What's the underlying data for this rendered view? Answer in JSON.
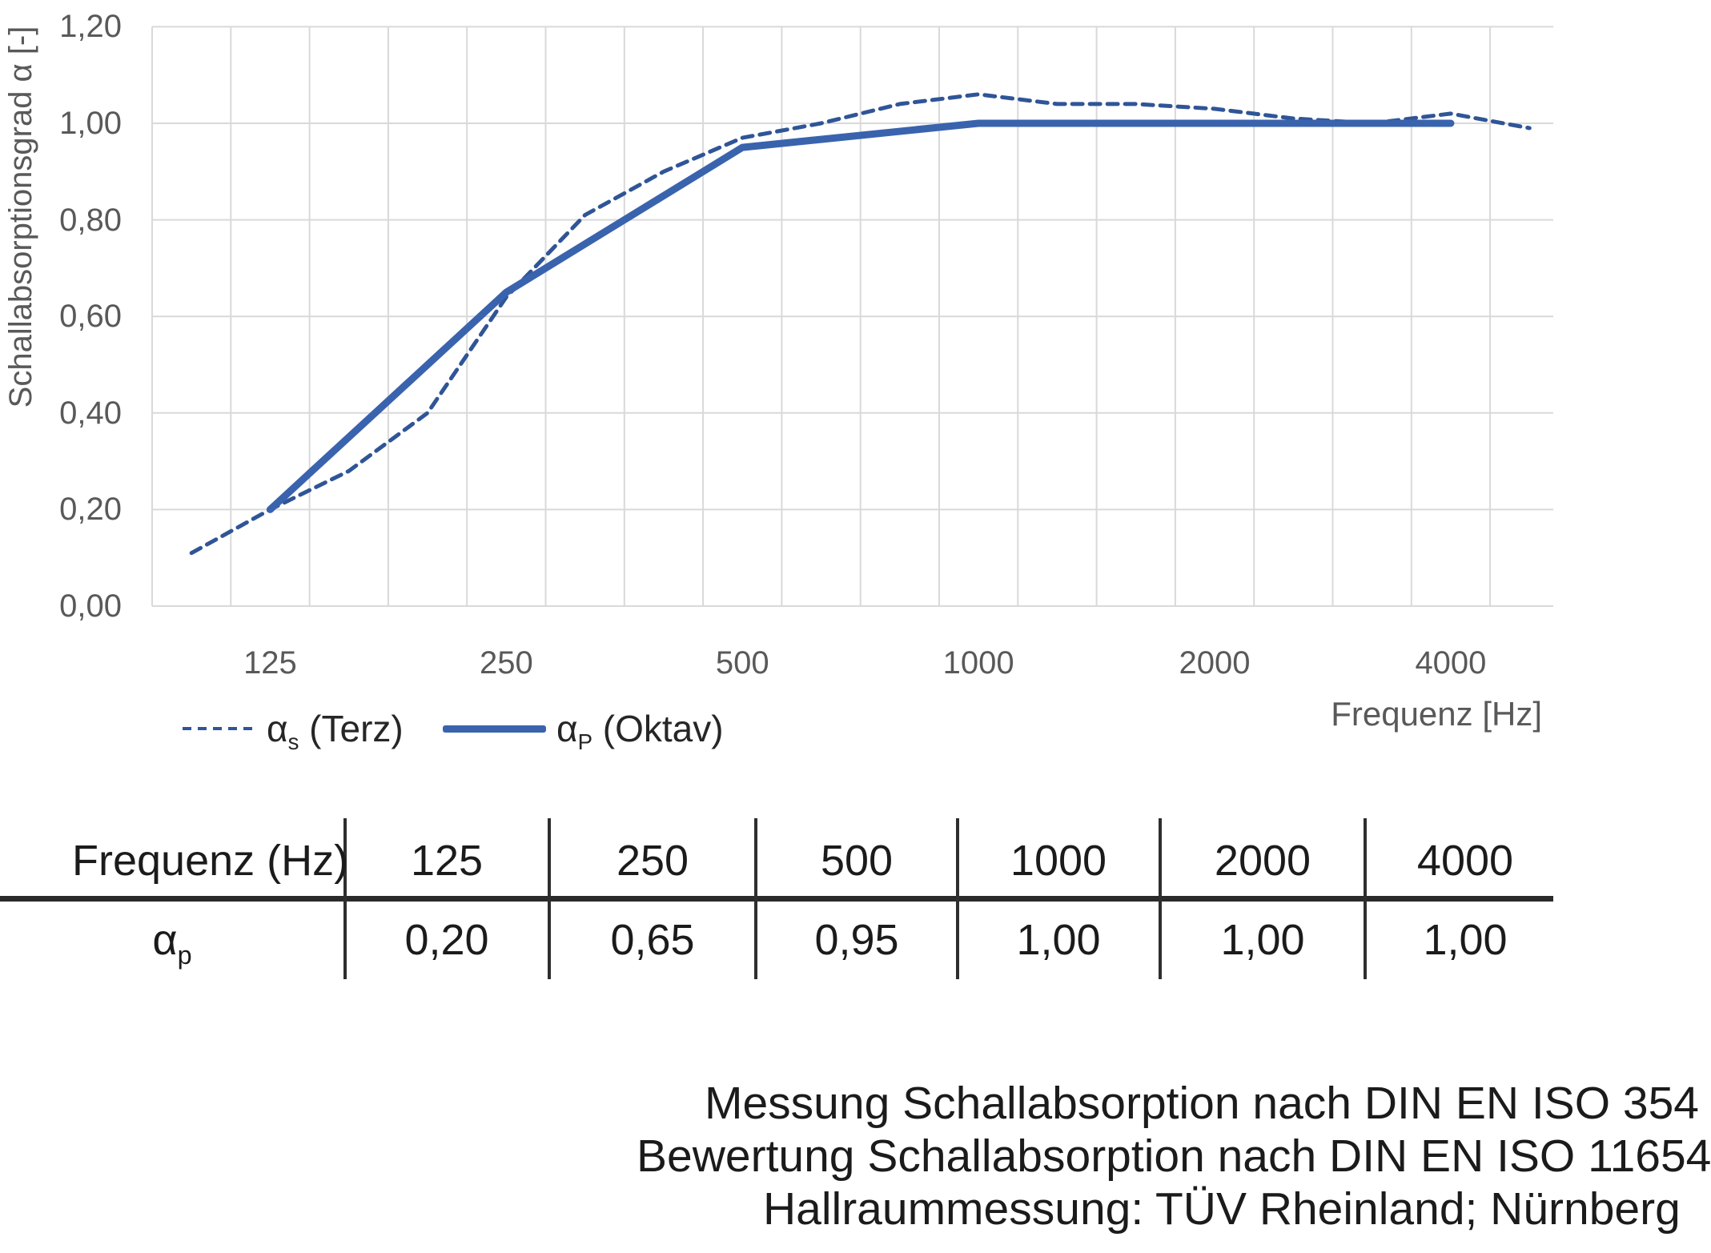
{
  "chart_data": {
    "type": "line",
    "title": "",
    "xlabel": "Frequenz [Hz]",
    "ylabel": "Schallabsorptionsgrad α [-]",
    "ylim": [
      0,
      1.2
    ],
    "ytick_step": 0.2,
    "ytick_labels": [
      "0,00",
      "0,20",
      "0,40",
      "0,60",
      "0,80",
      "1,00",
      "1,20"
    ],
    "grid": true,
    "legend_position": "bottom-left",
    "x_categories": [
      100,
      125,
      160,
      200,
      250,
      315,
      400,
      500,
      630,
      800,
      1000,
      1250,
      1600,
      2000,
      2500,
      3150,
      4000,
      5000
    ],
    "x_ticks": [
      {
        "index": 1,
        "label": "125"
      },
      {
        "index": 4,
        "label": "250"
      },
      {
        "index": 7,
        "label": "500"
      },
      {
        "index": 10,
        "label": "1000"
      },
      {
        "index": 13,
        "label": "2000"
      },
      {
        "index": 16,
        "label": "4000"
      }
    ],
    "series": [
      {
        "name": "αs (Terz)",
        "line_style": "dashed",
        "color": "#2F5597",
        "x": [
          100,
          125,
          160,
          200,
          250,
          315,
          400,
          500,
          630,
          800,
          1000,
          1250,
          1600,
          2000,
          2500,
          3150,
          4000,
          5000
        ],
        "values": [
          0.11,
          0.2,
          0.28,
          0.4,
          0.64,
          0.81,
          0.9,
          0.97,
          1.0,
          1.04,
          1.06,
          1.04,
          1.04,
          1.03,
          1.01,
          1.0,
          1.02,
          0.99
        ]
      },
      {
        "name": "αp (Oktav)",
        "line_style": "solid",
        "color": "#3A63AE",
        "x": [
          125,
          250,
          500,
          1000,
          2000,
          4000
        ],
        "values": [
          0.2,
          0.65,
          0.95,
          1.0,
          1.0,
          1.0
        ]
      }
    ]
  },
  "colors": {
    "grid": "#D9D9D9",
    "axis_text": "#595959",
    "dark_text": "#1b1b1b",
    "terz_line": "#2F5597",
    "oktav_line": "#3A63AE"
  },
  "legend": {
    "items": [
      {
        "symbol": "α",
        "sub": "s",
        "rest": " (Terz)",
        "style": "dashed"
      },
      {
        "symbol": "α",
        "sub": "P",
        "rest": " (Oktav)",
        "style": "solid"
      }
    ]
  },
  "table": {
    "col_headers": [
      "Frequenz (Hz)",
      "125",
      "250",
      "500",
      "1000",
      "2000",
      "4000"
    ],
    "row": {
      "symbol": "α",
      "sub": "p",
      "values": [
        "0,20",
        "0,65",
        "0,95",
        "1,00",
        "1,00",
        "1,00"
      ]
    }
  },
  "footer": {
    "lines": [
      "Messung Schallabsorption nach DIN EN ISO 354",
      "Bewertung Schallabsorption nach DIN EN ISO 11654",
      "Hallraummessung: TÜV Rheinland; Nürnberg"
    ]
  }
}
